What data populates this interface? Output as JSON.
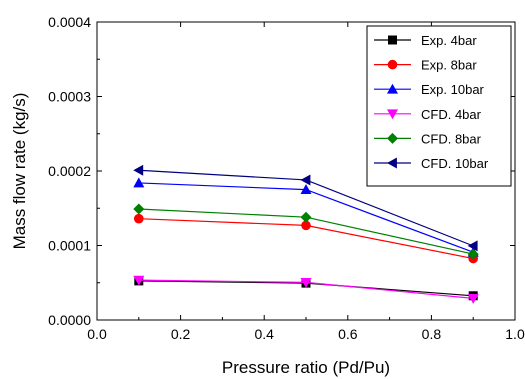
{
  "chart_data": {
    "type": "line",
    "title": "",
    "xlabel": "Pressure ratio (Pd/Pu)",
    "ylabel": "Mass flow rate (kg/s)",
    "xlim": [
      0.0,
      1.0
    ],
    "ylim": [
      0.0,
      0.0004
    ],
    "x_ticks": [
      "0.0",
      "0.2",
      "0.4",
      "0.6",
      "0.8",
      "1.0"
    ],
    "y_ticks": [
      "0.0000",
      "0.0001",
      "0.0002",
      "0.0003",
      "0.0004"
    ],
    "x_tick_values": [
      0.0,
      0.2,
      0.4,
      0.6,
      0.8,
      1.0
    ],
    "y_tick_values": [
      0.0,
      0.0001,
      0.0002,
      0.0003,
      0.0004
    ],
    "grid": false,
    "legend_position": "top-right",
    "x": [
      0.1,
      0.5,
      0.9
    ],
    "series": [
      {
        "name": "Exp. 4bar",
        "values": [
          5.25e-05,
          4.95e-05,
          3.25e-05
        ],
        "color": "#000000",
        "marker": "square"
      },
      {
        "name": "Exp. 8bar",
        "values": [
          0.000136,
          0.000127,
          8.25e-05
        ],
        "color": "#ff0000",
        "marker": "circle"
      },
      {
        "name": "Exp. 10bar",
        "values": [
          0.000184,
          0.000175,
          9.1e-05
        ],
        "color": "#0000ff",
        "marker": "triangle-up"
      },
      {
        "name": "CFD. 4bar",
        "values": [
          5.35e-05,
          5.05e-05,
          2.9e-05
        ],
        "color": "#ff00ff",
        "marker": "triangle-down"
      },
      {
        "name": "CFD. 8bar",
        "values": [
          0.000149,
          0.000138,
          8.85e-05
        ],
        "color": "#008000",
        "marker": "diamond"
      },
      {
        "name": "CFD. 10bar",
        "values": [
          0.000201,
          0.000188,
          9.95e-05
        ],
        "color": "#000080",
        "marker": "triangle-left"
      }
    ]
  }
}
